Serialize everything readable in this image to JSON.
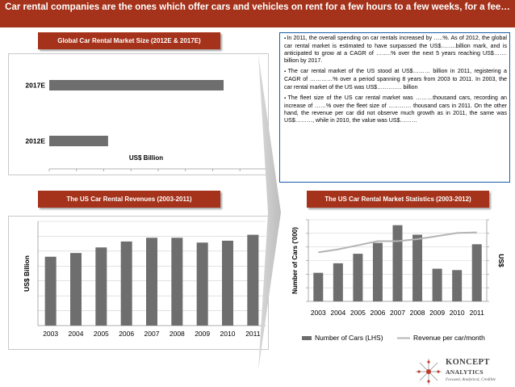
{
  "header": {
    "title": "Car rental companies are the ones which offer cars and vehicles on rent for a few hours to a few weeks, for a fee…"
  },
  "colors": {
    "brand": "#a5321a",
    "bar": "#6e6e6e",
    "line": "#b4b4b4",
    "box_border": "#1a5ea8",
    "logo_red": "#c0392b"
  },
  "sections": {
    "market_size_title": "Global Car Rental Market Size (2012E & 2017E)",
    "revenues_title": "The US Car Rental Revenues (2003-2011)",
    "statistics_title": "The US Car Rental Market Statistics (2003-2012)"
  },
  "bullets": [
    "In 2011, the overall spending on car rentals increased by …..%. As of 2012, the global car rental market is estimated to have surpassed the US$……..billion mark, and is anticipated to grow at a CAGR of ……..% over the next 5 years reaching US$……. billion by 2017.",
    "The car rental market of the US stood at US$……… billion in 2011, registering a CAGR of …………% over a period spanning 8 years from 2003 to 2011. In 2003, the car rental market of the US was US$…………. billion",
    "The fleet size of the US car rental market was ………thousand cars, recording an increase of ……% over the fleet size of ………… thousand cars in 2011. On the other hand, the revenue per car did not observe much growth as in 2011, the same was US$………, while in 2010, the value was US$………"
  ],
  "logo": {
    "name_line1": "KONCEPT",
    "name_line2": "ANALYTICS",
    "tagline": "Focused, Analytical, Credible"
  },
  "chart_data": [
    {
      "type": "bar",
      "orientation": "horizontal",
      "title": "Global Car Rental Market Size (2012E & 2017E)",
      "categories": [
        "2012E",
        "2017E"
      ],
      "values": [
        27,
        80
      ],
      "xlabel": "US$ Billion",
      "xlim": [
        0,
        100
      ],
      "axis_ticks_labeled": false
    },
    {
      "type": "bar",
      "title": "The US Car Rental Revenues (2003-2011)",
      "categories": [
        "2003",
        "2004",
        "2005",
        "2006",
        "2007",
        "2008",
        "2009",
        "2010",
        "2011"
      ],
      "values": [
        18.5,
        19.5,
        21,
        22.6,
        23.6,
        23.6,
        22.3,
        22.8,
        24.4
      ],
      "ylabel": "US$ Billion",
      "ylim": [
        0,
        28
      ],
      "grid": true
    },
    {
      "type": "bar+line",
      "title": "The US Car Rental Market Statistics (2003-2012)",
      "categories": [
        "2003",
        "2004",
        "2005",
        "2006",
        "2007",
        "2008",
        "2009",
        "2010",
        "2011"
      ],
      "series": [
        {
          "name": "Number of Cars (LHS)",
          "type": "bar",
          "axis": "left",
          "values": [
            1.05,
            1.4,
            1.75,
            2.15,
            2.8,
            2.45,
            1.2,
            1.15,
            2.1
          ]
        },
        {
          "name": "Revenue per car/month",
          "type": "line",
          "axis": "right",
          "values": [
            2.4,
            2.55,
            2.75,
            2.95,
            2.95,
            3.05,
            3.2,
            3.35,
            3.38
          ]
        }
      ],
      "ylabel_left": "Number of Cars ('000)",
      "ylabel_right": "US$",
      "ylim_left": [
        0,
        3
      ],
      "ylim_right": [
        0,
        4
      ],
      "legend": "bottom",
      "grid": true
    }
  ]
}
